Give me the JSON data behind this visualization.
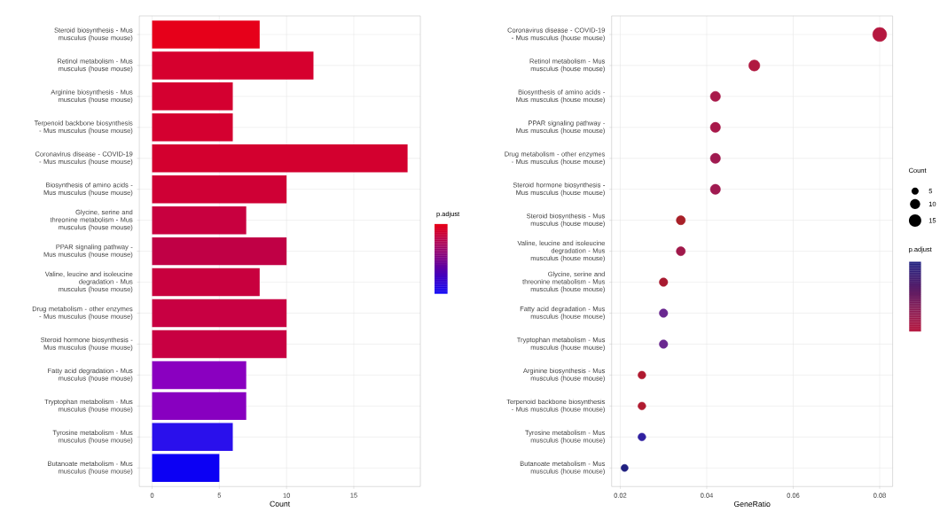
{
  "chart_data": [
    {
      "type": "bar",
      "orientation": "horizontal",
      "xlabel": "Count",
      "clabel": "p.adjust",
      "categories": [
        "Steroid biosynthesis - Mus musculus (house mouse)",
        "Retinol metabolism - Mus musculus (house mouse)",
        "Arginine biosynthesis - Mus musculus (house mouse)",
        "Terpenoid backbone biosynthesis - Mus musculus (house mouse)",
        "Coronavirus disease - COVID-19 - Mus musculus (house mouse)",
        "Biosynthesis of amino acids - Mus musculus (house mouse)",
        "Glycine, serine and threonine metabolism - Mus musculus (house mouse)",
        "PPAR signaling pathway - Mus musculus (house mouse)",
        "Valine, leucine and isoleucine degradation - Mus musculus (house mouse)",
        "Drug metabolism - other enzymes - Mus musculus (house mouse)",
        "Steroid hormone biosynthesis - Mus musculus (house mouse)",
        "Fatty acid degradation - Mus musculus (house mouse)",
        "Tryptophan metabolism - Mus musculus (house mouse)",
        "Tyrosine metabolism - Mus musculus (house mouse)",
        "Butanoate metabolism - Mus musculus (house mouse)"
      ],
      "values": [
        8,
        12,
        6,
        6,
        19,
        10,
        7,
        10,
        8,
        10,
        10,
        7,
        7,
        6,
        5
      ],
      "colors": [
        "#e6001a",
        "#d6002e",
        "#d40030",
        "#d40030",
        "#d3002f",
        "#cf0035",
        "#c8003f",
        "#c00045",
        "#c8003e",
        "#c80042",
        "#c80042",
        "#8a00c0",
        "#8800c0",
        "#2a10ec",
        "#0c00f4"
      ],
      "xlim": [
        -0.95,
        19.95
      ],
      "xticks": [
        0,
        5,
        10,
        15
      ],
      "grid": true
    },
    {
      "type": "bubble",
      "orientation": "horizontal",
      "xlabel": "GeneRatio",
      "clabel": "p.adjust",
      "legend_title": "Count",
      "categories": [
        "Coronavirus disease - COVID-19 - Mus musculus (house mouse)",
        "Retinol metabolism - Mus musculus (house mouse)",
        "Biosynthesis of amino acids - Mus musculus (house mouse)",
        "PPAR signaling pathway - Mus musculus (house mouse)",
        "Drug metabolism - other enzymes - Mus musculus (house mouse)",
        "Steroid hormone biosynthesis - Mus musculus (house mouse)",
        "Steroid biosynthesis - Mus musculus (house mouse)",
        "Valine, leucine and isoleucine degradation - Mus musculus (house mouse)",
        "Glycine, serine and threonine metabolism - Mus musculus (house mouse)",
        "Fatty acid degradation - Mus musculus (house mouse)",
        "Tryptophan metabolism - Mus musculus (house mouse)",
        "Arginine biosynthesis - Mus musculus (house mouse)",
        "Terpenoid backbone biosynthesis - Mus musculus (house mouse)",
        "Tyrosine metabolism - Mus musculus (house mouse)",
        "Butanoate metabolism - Mus musculus (house mouse)"
      ],
      "values": [
        0.08,
        0.051,
        0.042,
        0.042,
        0.042,
        0.042,
        0.034,
        0.034,
        0.03,
        0.03,
        0.03,
        0.025,
        0.025,
        0.025,
        0.021
      ],
      "sizes": [
        19,
        12,
        10,
        10,
        10,
        10,
        8,
        8,
        7,
        7,
        7,
        6,
        6,
        6,
        5
      ],
      "size_legend": [
        5,
        10,
        15
      ],
      "colors": [
        "#b5173f",
        "#b01840",
        "#a8194a",
        "#a8184a",
        "#a01a50",
        "#a01a50",
        "#a82028",
        "#a0184a",
        "#a81a30",
        "#6a2890",
        "#6a2890",
        "#b01a30",
        "#b01a30",
        "#3020a0",
        "#202080"
      ],
      "xlim": [
        0.018,
        0.083
      ],
      "xticks": [
        0.02,
        0.04,
        0.06,
        0.08
      ],
      "grid": true
    }
  ]
}
